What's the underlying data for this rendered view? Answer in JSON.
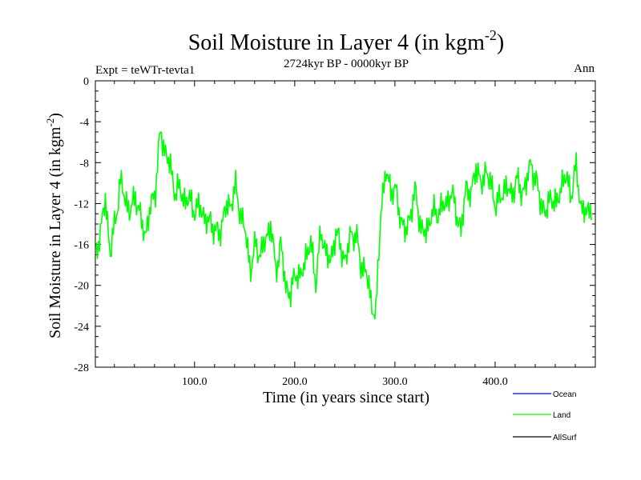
{
  "chart_data": {
    "type": "line",
    "title": "Soil Moisture in Layer 4 (in kgm",
    "title_sup": "-2",
    "title_close": ")",
    "subtitle": "2724kyr BP - 0000kyr BP",
    "left_label": "Expt = teWTr-tevta1",
    "right_label": "Ann",
    "xlabel": "Time (in years since start)",
    "ylabel": "Soil Moisture in Layer 4 (in kgm",
    "ylabel_sup": "-2",
    "ylabel_close": ")",
    "xlim": [
      1,
      500
    ],
    "ylim": [
      -28,
      0
    ],
    "x_ticks": [
      100,
      200,
      300,
      400
    ],
    "x_tick_labels": [
      "100.0",
      "200.0",
      "300.0",
      "400.0"
    ],
    "y_ticks": [
      0,
      -4,
      -8,
      -12,
      -16,
      -20,
      -24,
      -28
    ],
    "y_tick_labels": [
      "0",
      "-4",
      "-8",
      "-12",
      "-16",
      "-20",
      "-24",
      "-28"
    ],
    "legend": [
      {
        "name": "Ocean",
        "color": "#0000ff"
      },
      {
        "name": "Land",
        "color": "#00ff00"
      },
      {
        "name": "AllSurf",
        "color": "#000000"
      }
    ],
    "series": [
      {
        "name": "Land",
        "color": "#00ff00",
        "x_start": 1,
        "x_step": 5,
        "values": [
          -16.5,
          -15.0,
          -11.5,
          -17.0,
          -13.5,
          -10.0,
          -11.5,
          -13.0,
          -11.0,
          -13.5,
          -15.0,
          -12.5,
          -10.5,
          -5.0,
          -7.0,
          -8.5,
          -11.0,
          -10.5,
          -12.0,
          -11.5,
          -13.0,
          -12.0,
          -14.0,
          -13.5,
          -15.0,
          -14.5,
          -12.5,
          -12.0,
          -10.5,
          -13.0,
          -15.0,
          -18.5,
          -16.0,
          -17.0,
          -15.5,
          -14.0,
          -18.5,
          -16.0,
          -20.0,
          -21.0,
          -18.5,
          -19.5,
          -17.0,
          -16.0,
          -19.5,
          -15.0,
          -16.5,
          -18.0,
          -14.5,
          -16.5,
          -17.5,
          -15.0,
          -15.0,
          -18.0,
          -18.5,
          -21.5,
          -23.0,
          -12.5,
          -9.0,
          -10.5,
          -11.0,
          -13.5,
          -15.0,
          -12.5,
          -11.0,
          -14.5,
          -15.0,
          -13.0,
          -13.0,
          -12.5,
          -12.0,
          -11.0,
          -12.5,
          -15.0,
          -10.0,
          -11.5,
          -8.0,
          -10.5,
          -8.5,
          -10.5,
          -12.0,
          -11.5,
          -10.0,
          -11.5,
          -9.5,
          -11.0,
          -10.0,
          -8.0,
          -10.0,
          -12.0,
          -13.0,
          -11.0,
          -12.5,
          -10.0,
          -9.5,
          -11.0,
          -8.5,
          -12.5,
          -13.0,
          -12.0
        ]
      }
    ]
  }
}
